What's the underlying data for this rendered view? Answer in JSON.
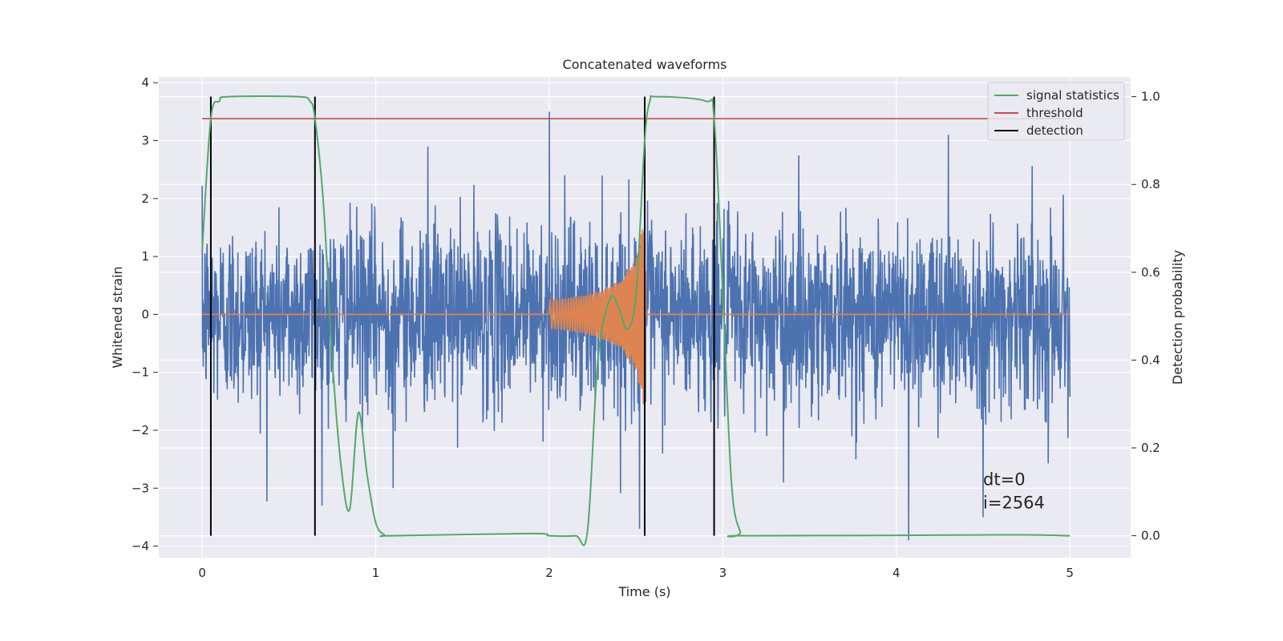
{
  "chart_data": {
    "type": "line",
    "title": "Concatenated waveforms",
    "xlabel": "Time (s)",
    "ylabel": "Whitened strain",
    "y2label": "Detection probability",
    "xlim": [
      -0.25,
      5.35
    ],
    "ylim": [
      -4.2,
      4.1
    ],
    "y2lim": [
      -0.05,
      1.045
    ],
    "xticks": [
      "0",
      "1",
      "2",
      "3",
      "4",
      "5"
    ],
    "yticks": [
      "−4",
      "−3",
      "−2",
      "−1",
      "0",
      "1",
      "2",
      "3",
      "4"
    ],
    "y2ticks": [
      "0.0",
      "0.2",
      "0.4",
      "0.6",
      "0.8",
      "1.0"
    ],
    "grid": true,
    "legend_position": "top-right",
    "legend": [
      "signal statistics",
      "threshold",
      "detection"
    ],
    "colors": {
      "noise": "#4c72b0",
      "waveform": "#dd8452",
      "signal_statistics": "#55a868",
      "threshold": "#c44e52",
      "detection": "#000000",
      "background": "#eaeaf2",
      "grid": "#ffffff"
    },
    "series": [
      {
        "name": "",
        "axis": "left",
        "kind": "whitened noise strain",
        "x_range": [
          0,
          5
        ],
        "typical_amplitude": 0.8,
        "peak_values": [
          {
            "x": 2.0,
            "y": 3.5
          },
          {
            "x": 1.3,
            "y": 2.9
          },
          {
            "x": 4.3,
            "y": 3.1
          },
          {
            "x": 1.1,
            "y": -3.0
          },
          {
            "x": 3.35,
            "y": -2.9
          },
          {
            "x": 4.07,
            "y": -3.9
          },
          {
            "x": 2.52,
            "y": -3.7
          },
          {
            "x": 4.5,
            "y": -3.5
          }
        ]
      },
      {
        "name": "",
        "axis": "left",
        "kind": "injected chirp waveform",
        "x": [
          0,
          2.0,
          2.1,
          2.2,
          2.3,
          2.4,
          2.5,
          2.55,
          2.56,
          5.0
        ],
        "envelope": [
          0,
          0.25,
          0.28,
          0.33,
          0.42,
          0.58,
          0.95,
          1.7,
          0,
          0
        ]
      },
      {
        "name": "signal statistics",
        "axis": "right",
        "x": [
          0,
          0.05,
          0.1,
          0.15,
          0.55,
          0.62,
          0.65,
          0.7,
          0.75,
          0.8,
          0.85,
          0.9,
          0.95,
          1.0,
          1.05,
          1.1,
          1.9,
          2.0,
          2.15,
          2.22,
          2.28,
          2.35,
          2.4,
          2.45,
          2.5,
          2.55,
          2.58,
          2.62,
          2.9,
          2.95,
          3.0,
          3.05,
          3.1,
          3.15,
          4.6,
          5.0
        ],
        "values": [
          0.65,
          0.95,
          0.99,
          1.0,
          1.0,
          0.99,
          0.95,
          0.75,
          0.4,
          0.16,
          0.06,
          0.28,
          0.14,
          0.03,
          0.002,
          0.0,
          0.005,
          0.0,
          0.0,
          0.01,
          0.4,
          0.54,
          0.52,
          0.47,
          0.55,
          0.9,
          0.99,
          1.0,
          0.99,
          0.95,
          0.55,
          0.12,
          0.01,
          0.0,
          0.002,
          0.0
        ]
      },
      {
        "name": "threshold",
        "axis": "right",
        "x": [
          0,
          5
        ],
        "values": [
          0.95,
          0.95
        ]
      }
    ],
    "detections": [
      {
        "label": "detection",
        "x": 0.05
      },
      {
        "label": "",
        "x": 0.65
      },
      {
        "label": "",
        "x": 2.55
      },
      {
        "label": "",
        "x": 2.95
      }
    ],
    "annotations": [
      {
        "text": "dt=0",
        "x": 4.5,
        "y": -2.95
      },
      {
        "text": "i=2564",
        "x": 4.5,
        "y": -3.35
      }
    ]
  }
}
